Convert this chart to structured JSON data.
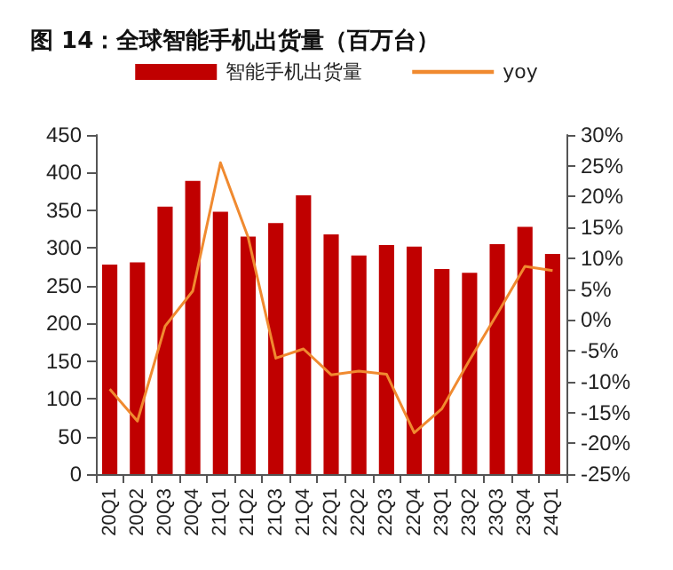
{
  "chart_data": {
    "type": "bar",
    "title": "图 14：全球智能手机出货量（百万台）",
    "categories": [
      "20Q1",
      "20Q2",
      "20Q3",
      "20Q4",
      "21Q1",
      "21Q2",
      "21Q3",
      "21Q4",
      "22Q1",
      "22Q2",
      "22Q3",
      "22Q4",
      "23Q1",
      "23Q2",
      "23Q3",
      "23Q4",
      "24Q1"
    ],
    "series": [
      {
        "name": "智能手机出货量",
        "color": "#c00000",
        "values": [
          278,
          281,
          355,
          389,
          348,
          315,
          333,
          370,
          318,
          290,
          304,
          302,
          272,
          267,
          305,
          328,
          292
        ]
      },
      {
        "name": "yoy",
        "type": "line",
        "axis": "y2",
        "color": "#f08a30",
        "values": [
          -11.2,
          -16.4,
          -1.0,
          4.7,
          25.5,
          13.4,
          -6.2,
          -4.7,
          -8.9,
          -8.3,
          -8.8,
          -18.3,
          -14.4,
          -6.5,
          1.0,
          8.7,
          8.0
        ]
      }
    ],
    "ylim": [
      0,
      450
    ],
    "yticks": [
      0,
      50,
      100,
      150,
      200,
      250,
      300,
      350,
      400,
      450
    ],
    "y2lim": [
      -25,
      30
    ],
    "y2ticks": [
      {
        "value": -25,
        "label": "-25%"
      },
      {
        "value": -20,
        "label": "-20%"
      },
      {
        "value": -15,
        "label": "-15%"
      },
      {
        "value": -10,
        "label": "-10%"
      },
      {
        "value": -5,
        "label": "-5%"
      },
      {
        "value": 0,
        "label": "0%"
      },
      {
        "value": 5,
        "label": "5%"
      },
      {
        "value": 10,
        "label": "10%"
      },
      {
        "value": 15,
        "label": "15%"
      },
      {
        "value": 20,
        "label": "20%"
      },
      {
        "value": 25,
        "label": "25%"
      },
      {
        "value": 30,
        "label": "30%"
      }
    ],
    "legend": "top"
  }
}
